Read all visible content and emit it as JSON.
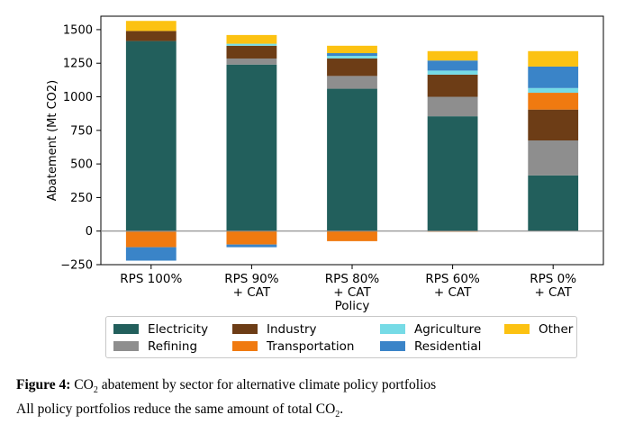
{
  "chart_data": {
    "type": "bar",
    "stacked": true,
    "ylabel": "Abatement (Mt CO2)",
    "xlabel": "Policy",
    "categories": [
      "RPS 100%",
      "RPS 90%\n+ CAT",
      "RPS 80%\n+ CAT",
      "RPS 60%\n+ CAT",
      "RPS 0%\n+ CAT"
    ],
    "ylim": [
      -250,
      1600
    ],
    "yticks": [
      -250,
      0,
      250,
      500,
      750,
      1000,
      1250,
      1500
    ],
    "grid": false,
    "zero_line": true,
    "series": [
      {
        "name": "Electricity",
        "color": "#225f5c",
        "values": [
          1415,
          1240,
          1060,
          855,
          415
        ]
      },
      {
        "name": "Refining",
        "color": "#8e8e8e",
        "values": [
          -5,
          45,
          95,
          145,
          260
        ]
      },
      {
        "name": "Industry",
        "color": "#6d3d16",
        "values": [
          75,
          95,
          130,
          165,
          230
        ]
      },
      {
        "name": "Transportation",
        "color": "#f07a10",
        "values": [
          -115,
          -100,
          -75,
          -5,
          125
        ]
      },
      {
        "name": "Agriculture",
        "color": "#76dbe6",
        "values": [
          0,
          15,
          20,
          30,
          35
        ]
      },
      {
        "name": "Residential",
        "color": "#3a84c8",
        "values": [
          -100,
          -20,
          20,
          75,
          160
        ]
      },
      {
        "name": "Other",
        "color": "#fcc212",
        "values": [
          75,
          65,
          55,
          70,
          115
        ]
      }
    ],
    "legend_position": "bottom-outside",
    "legend_order": [
      "Electricity",
      "Refining",
      "Industry",
      "Transportation",
      "Agriculture",
      "Residential",
      "Other"
    ]
  },
  "caption": {
    "figure_label": "Figure 4:",
    "line1_pre": "CO",
    "line1_sub": "2",
    "line1_post": " abatement by sector for alternative climate policy portfolios",
    "line2_pre": "All policy portfolios reduce the same amount of total CO",
    "line2_sub": "2",
    "line2_post": "."
  }
}
